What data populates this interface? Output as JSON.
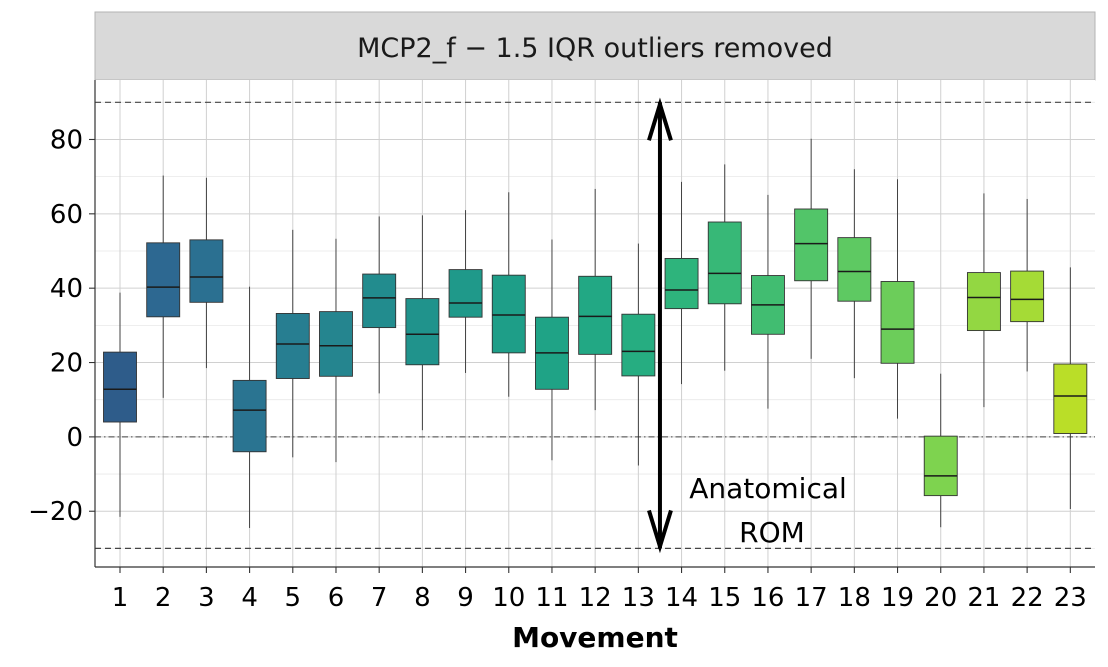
{
  "chart_data": {
    "type": "boxplot",
    "title": "MCP2_f − 1.5 IQR outliers removed",
    "xlabel": "Movement",
    "ylabel": "",
    "ylim": [
      -35,
      96
    ],
    "yticks": [
      -20,
      0,
      20,
      40,
      60,
      80
    ],
    "y_tick_labels": [
      "−20",
      "0",
      "20",
      "40",
      "60",
      "80"
    ],
    "grid": true,
    "categories": [
      "1",
      "2",
      "3",
      "4",
      "5",
      "6",
      "7",
      "8",
      "9",
      "10",
      "11",
      "12",
      "13",
      "14",
      "15",
      "16",
      "17",
      "18",
      "19",
      "20",
      "21",
      "22",
      "23"
    ],
    "boxes": [
      {
        "whisker_low": -21.5,
        "q1": 4,
        "median": 12.8,
        "q3": 22.8,
        "whisker_high": 38.8,
        "color": "#2e5c8a"
      },
      {
        "whisker_low": 10.5,
        "q1": 32.3,
        "median": 40.3,
        "q3": 52.2,
        "whisker_high": 70.3,
        "color": "#2d6891"
      },
      {
        "whisker_low": 18.5,
        "q1": 36.2,
        "median": 43,
        "q3": 53,
        "whisker_high": 69.7,
        "color": "#2b7091"
      },
      {
        "whisker_low": -24.5,
        "q1": -4,
        "median": 7.2,
        "q3": 15.2,
        "whisker_high": 40.4,
        "color": "#2a7491"
      },
      {
        "whisker_low": -5.5,
        "q1": 15.7,
        "median": 25,
        "q3": 33.2,
        "whisker_high": 55.7,
        "color": "#277e91"
      },
      {
        "whisker_low": -6.8,
        "q1": 16.3,
        "median": 24.5,
        "q3": 33.7,
        "whisker_high": 53.3,
        "color": "#25858f"
      },
      {
        "whisker_low": 11.7,
        "q1": 29.4,
        "median": 37.4,
        "q3": 43.8,
        "whisker_high": 59.3,
        "color": "#228c8e"
      },
      {
        "whisker_low": 1.8,
        "q1": 19.4,
        "median": 27.6,
        "q3": 37.2,
        "whisker_high": 59.6,
        "color": "#20938c"
      },
      {
        "whisker_low": 17.2,
        "q1": 32.2,
        "median": 36,
        "q3": 45,
        "whisker_high": 61,
        "color": "#1f998a"
      },
      {
        "whisker_low": 10.8,
        "q1": 22.6,
        "median": 32.8,
        "q3": 43.5,
        "whisker_high": 65.8,
        "color": "#1e9e88"
      },
      {
        "whisker_low": -6.3,
        "q1": 12.8,
        "median": 22.6,
        "q3": 32.2,
        "whisker_high": 53.1,
        "color": "#1fa386"
      },
      {
        "whisker_low": 7.2,
        "q1": 22.2,
        "median": 32.4,
        "q3": 43.2,
        "whisker_high": 66.7,
        "color": "#22a884"
      },
      {
        "whisker_low": -7.7,
        "q1": 16.4,
        "median": 23,
        "q3": 33,
        "whisker_high": 52,
        "color": "#26ad81"
      },
      {
        "whisker_low": 14.2,
        "q1": 34.5,
        "median": 39.5,
        "q3": 48,
        "whisker_high": 68.6,
        "color": "#2eb47c"
      },
      {
        "whisker_low": 17.8,
        "q1": 35.8,
        "median": 44,
        "q3": 57.8,
        "whisker_high": 73.3,
        "color": "#37b877"
      },
      {
        "whisker_low": 7.6,
        "q1": 27.6,
        "median": 35.5,
        "q3": 43.4,
        "whisker_high": 65.1,
        "color": "#41bd71"
      },
      {
        "whisker_low": 21,
        "q1": 42,
        "median": 52,
        "q3": 61.3,
        "whisker_high": 80.2,
        "color": "#52c569"
      },
      {
        "whisker_low": 15.8,
        "q1": 36.5,
        "median": 44.5,
        "q3": 53.6,
        "whisker_high": 72,
        "color": "#5ec962"
      },
      {
        "whisker_low": 4.9,
        "q1": 19.8,
        "median": 29,
        "q3": 41.8,
        "whisker_high": 69.3,
        "color": "#6ccd5a"
      },
      {
        "whisker_low": -24.3,
        "q1": -15.8,
        "median": -10.5,
        "q3": 0.2,
        "whisker_high": 17,
        "color": "#7ed34f"
      },
      {
        "whisker_low": 8,
        "q1": 28.6,
        "median": 37.5,
        "q3": 44.2,
        "whisker_high": 65.5,
        "color": "#93d742"
      },
      {
        "whisker_low": 17.6,
        "q1": 31,
        "median": 37,
        "q3": 44.6,
        "whisker_high": 64,
        "color": "#a5db36"
      },
      {
        "whisker_low": -19.4,
        "q1": 0.9,
        "median": 11,
        "q3": 19.6,
        "whisker_high": 45.6,
        "color": "#bade28"
      }
    ],
    "reference_lines": {
      "dashed": [
        90,
        -30
      ],
      "dotdash": [
        0
      ]
    },
    "annotation": {
      "arrow_from": -30,
      "arrow_to": 90,
      "arrow_x_between_categories": [
        "13",
        "14"
      ],
      "text_line1": "Anatomical",
      "text_line2": "ROM"
    }
  }
}
